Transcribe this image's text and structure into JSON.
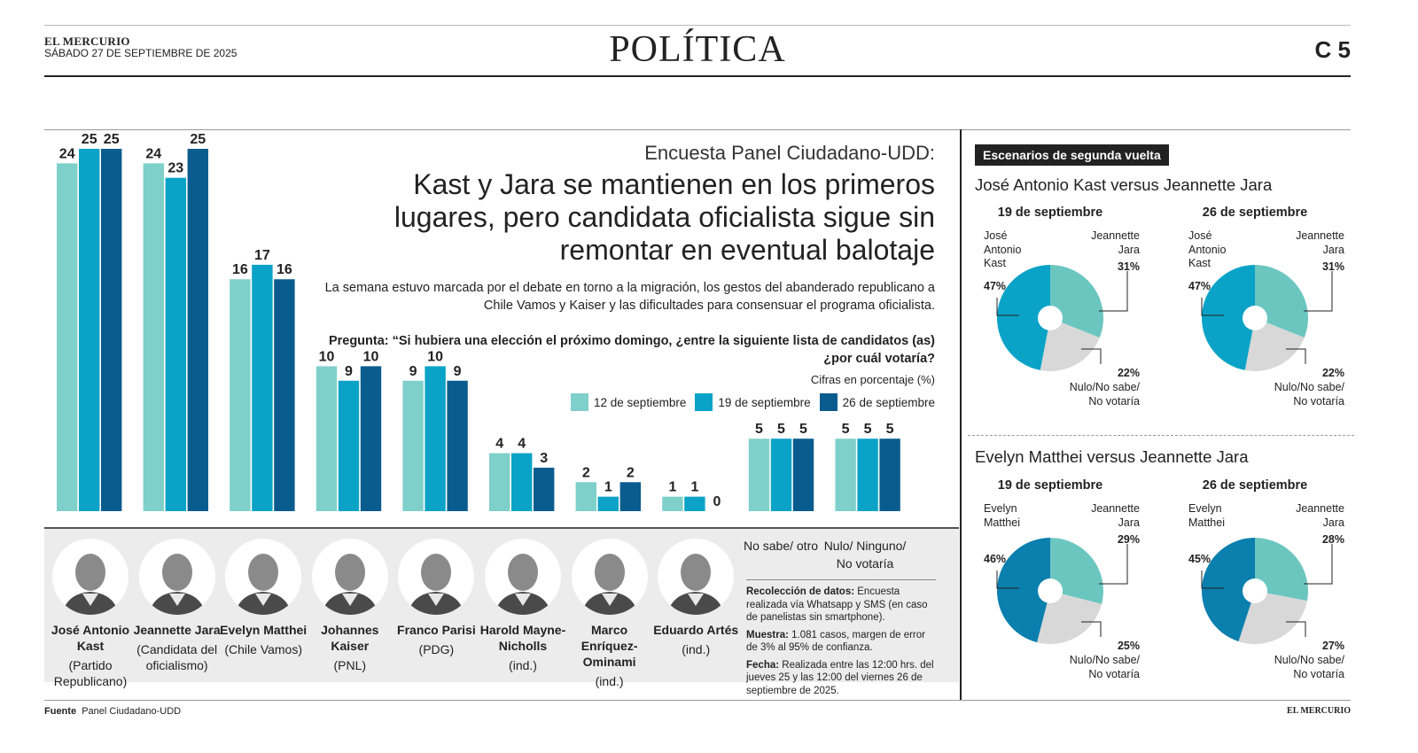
{
  "masthead": {
    "paper_name": "EL MERCURIO",
    "date": "SÁBADO 27 DE SEPTIEMBRE DE 2025",
    "section": "POLÍTICA",
    "page": "C 5"
  },
  "article": {
    "kicker": "Encuesta Panel Ciudadano-UDD:",
    "headline": "Kast y Jara se mantienen en los primeros lugares, pero candidata oficialista sigue sin remontar en eventual balotaje",
    "deck": "La semana estuvo marcada por el debate en torno a la migración, los gestos del abanderado republicano a Chile Vamos y Kaiser y las dificultades para consensuar el programa oficialista.",
    "question": "Pregunta: “Si hubiera una elección el próximo domingo, ¿entre la siguiente lista de candidatos (as) ¿por cuál votaría?",
    "units": "Cifras en porcentaje (%)"
  },
  "colors": {
    "s1": "#7fd0cb",
    "s2": "#0aa3c7",
    "s3": "#0b5c8e",
    "panel": "#ececec"
  },
  "chart_data": [
    {
      "type": "bar",
      "categories": [
        "José Antonio Kast",
        "Jeannette Jara",
        "Evelyn Matthei",
        "Johannes Kaiser",
        "Franco Parisi",
        "Harold Mayne-Nicholls",
        "Marco Enríquez-Ominami",
        "Eduardo Artés",
        "No sabe/ otro",
        "Nulo/ Ninguno/ No votaría"
      ],
      "series": [
        {
          "name": "12 de septiembre",
          "values": [
            24,
            24,
            16,
            10,
            9,
            4,
            2,
            1,
            5,
            5
          ]
        },
        {
          "name": "19 de septiembre",
          "values": [
            25,
            23,
            17,
            9,
            10,
            4,
            1,
            1,
            5,
            5
          ]
        },
        {
          "name": "26 de septiembre",
          "values": [
            25,
            25,
            16,
            10,
            9,
            3,
            2,
            0,
            5,
            5
          ]
        }
      ],
      "ylim": [
        0,
        25
      ],
      "grid": false,
      "legend": "top-right"
    },
    {
      "type": "pie",
      "title": "José Antonio Kast versus Jeannette Jara",
      "subtitle": "19 de septiembre",
      "slices": [
        {
          "label": "Jeannette Jara",
          "value": 31
        },
        {
          "label": "Nulo/No sabe/ No votaría",
          "value": 22
        },
        {
          "label": "José Antonio Kast",
          "value": 47
        }
      ]
    },
    {
      "type": "pie",
      "title": "José Antonio Kast versus Jeannette Jara",
      "subtitle": "26 de septiembre",
      "slices": [
        {
          "label": "Jeannette Jara",
          "value": 31
        },
        {
          "label": "Nulo/No sabe/ No votaría",
          "value": 22
        },
        {
          "label": "José Antonio Kast",
          "value": 47
        }
      ]
    },
    {
      "type": "pie",
      "title": "Evelyn Matthei versus Jeannette Jara",
      "subtitle": "19 de septiembre",
      "slices": [
        {
          "label": "Jeannette Jara",
          "value": 29
        },
        {
          "label": "Nulo/No sabe/ No votaría",
          "value": 25
        },
        {
          "label": "Evelyn Matthei",
          "value": 46
        }
      ]
    },
    {
      "type": "pie",
      "title": "Evelyn Matthei versus Jeannette Jara",
      "subtitle": "26 de septiembre",
      "slices": [
        {
          "label": "Jeannette Jara",
          "value": 28
        },
        {
          "label": "Nulo/No sabe/ No votaría",
          "value": 27
        },
        {
          "label": "Evelyn Matthei",
          "value": 45
        }
      ]
    }
  ],
  "candidates": [
    {
      "name": "José Antonio Kast",
      "party": "(Partido Republicano)"
    },
    {
      "name": "Jeannette Jara",
      "party": "(Candidata del oficialismo)"
    },
    {
      "name": "Evelyn Matthei",
      "party": "(Chile Vamos)"
    },
    {
      "name": "Johannes Kaiser",
      "party": "(PNL)"
    },
    {
      "name": "Franco Parisi",
      "party": "(PDG)"
    },
    {
      "name": "Harold Mayne-Nicholls",
      "party": "(ind.)"
    },
    {
      "name": "Marco Enríquez-Ominami",
      "party": "(ind.)"
    },
    {
      "name": "Eduardo Artés",
      "party": "(ind.)"
    }
  ],
  "other_categories": [
    "No sabe/ otro",
    "Nulo/ Ninguno/ No votaría"
  ],
  "methodology": {
    "collection_label": "Recolección de datos:",
    "collection_text": " Encuesta realizada vía Whatsapp y SMS (en caso de panelistas sin smartphone).",
    "sample_label": "Muestra:",
    "sample_text": " 1.081 casos, margen de error de 3% al 95% de confianza.",
    "date_label": "Fecha:",
    "date_text": " Realizada entre las 12:00 hrs. del jueves 25 y las 12:00 del viernes 26 de septiembre de 2025."
  },
  "runoff": {
    "badge": "Escenarios de segunda vuelta",
    "matchup1_title": "José Antonio Kast versus Jeannette Jara",
    "matchup2_title": "Evelyn Matthei versus Jeannette Jara",
    "pies": [
      {
        "date": "19 de septiembre",
        "left_name": "José Antonio Kast",
        "left_pct": "47%",
        "right_name": "Jeannette Jara",
        "right_pct": "31%",
        "bottom_pct": "22%",
        "bottom_name": "Nulo/No sabe/ No votaría",
        "main_color": "#0aa3c7"
      },
      {
        "date": "26 de septiembre",
        "left_name": "José Antonio Kast",
        "left_pct": "47%",
        "right_name": "Jeannette Jara",
        "right_pct": "31%",
        "bottom_pct": "22%",
        "bottom_name": "Nulo/No sabe/ No votaría",
        "main_color": "#0aa3c7"
      },
      {
        "date": "19 de septiembre",
        "left_name": "Evelyn Matthei",
        "left_pct": "46%",
        "right_name": "Jeannette Jara",
        "right_pct": "29%",
        "bottom_pct": "25%",
        "bottom_name": "Nulo/No sabe/ No votaría",
        "main_color": "#0b7fae"
      },
      {
        "date": "26 de septiembre",
        "left_name": "Evelyn Matthei",
        "left_pct": "45%",
        "right_name": "Jeannette Jara",
        "right_pct": "28%",
        "bottom_pct": "27%",
        "bottom_name": "Nulo/No sabe/ No votaría",
        "main_color": "#0b7fae"
      }
    ]
  },
  "footer": {
    "source_label": "Fuente",
    "source": "Panel Ciudadano-UDD",
    "brand": "EL MERCURIO"
  }
}
